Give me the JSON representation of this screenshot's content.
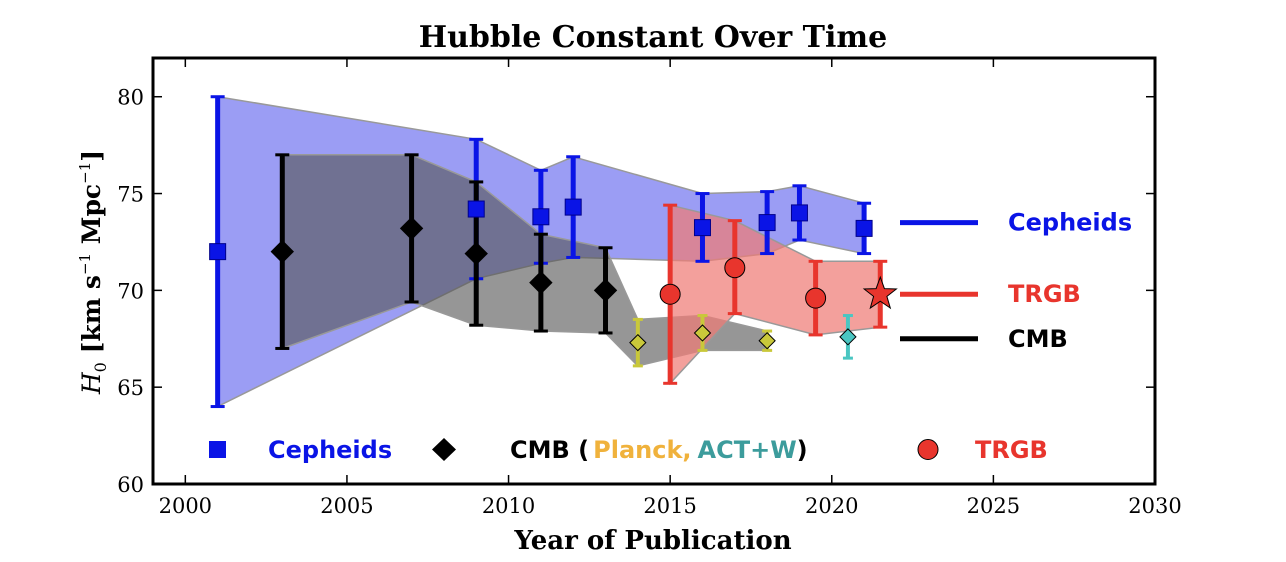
{
  "chart_data": {
    "type": "scatter",
    "title": "Hubble Constant Over Time",
    "xlabel": "Year of Publication",
    "ylabel_parts": {
      "h": "H",
      "sub": "0",
      "unit_a": " [km s",
      "exp_a": "−1",
      "unit_b": " Mpc",
      "exp_b": "−1",
      "unit_c": "]"
    },
    "xlim": [
      1999,
      2030
    ],
    "ylim": [
      60,
      82
    ],
    "xticks": [
      2000,
      2005,
      2010,
      2015,
      2020,
      2025,
      2030
    ],
    "yticks": [
      60,
      65,
      70,
      75,
      80
    ],
    "grid": false,
    "colors": {
      "cepheids": "#0a14e6",
      "cepheids_band": "#7a7cf0",
      "cmb": "#000000",
      "cmb_band": "#555555",
      "trgb": "#e8352d",
      "trgb_band": "#ee7b76",
      "planck": "#f0b23c",
      "actw": "#3c9c9c",
      "planck_err": "#c9c83a",
      "actw_err": "#4ac6c2",
      "band_edge": "#999999"
    },
    "series": [
      {
        "name": "Cepheids",
        "marker": "square",
        "points": [
          {
            "x": 2001,
            "y": 72.0,
            "lo": 64.0,
            "hi": 80.0
          },
          {
            "x": 2009,
            "y": 74.2,
            "lo": 70.6,
            "hi": 77.8
          },
          {
            "x": 2011,
            "y": 73.8,
            "lo": 71.4,
            "hi": 76.2
          },
          {
            "x": 2012,
            "y": 74.3,
            "lo": 71.7,
            "hi": 76.9
          },
          {
            "x": 2016,
            "y": 73.24,
            "lo": 71.5,
            "hi": 75.0
          },
          {
            "x": 2018,
            "y": 73.5,
            "lo": 71.9,
            "hi": 75.1
          },
          {
            "x": 2019,
            "y": 74.0,
            "lo": 72.6,
            "hi": 75.4
          },
          {
            "x": 2021,
            "y": 73.2,
            "lo": 71.9,
            "hi": 74.5
          }
        ]
      },
      {
        "name": "CMB",
        "marker": "diamond",
        "points": [
          {
            "x": 2003,
            "y": 72.0,
            "lo": 67.0,
            "hi": 77.0
          },
          {
            "x": 2007,
            "y": 73.2,
            "lo": 69.4,
            "hi": 77.0
          },
          {
            "x": 2009,
            "y": 71.9,
            "lo": 68.2,
            "hi": 75.6
          },
          {
            "x": 2011,
            "y": 70.4,
            "lo": 67.9,
            "hi": 72.9
          },
          {
            "x": 2013,
            "y": 70.0,
            "lo": 67.8,
            "hi": 72.2
          }
        ]
      },
      {
        "name": "Planck",
        "marker": "diamond",
        "points": [
          {
            "x": 2014,
            "y": 67.3,
            "lo": 66.1,
            "hi": 68.5
          },
          {
            "x": 2016,
            "y": 67.8,
            "lo": 66.9,
            "hi": 68.7
          },
          {
            "x": 2018,
            "y": 67.4,
            "lo": 66.9,
            "hi": 67.9
          }
        ]
      },
      {
        "name": "ACT+W",
        "marker": "diamond",
        "points": [
          {
            "x": 2020.5,
            "y": 67.6,
            "lo": 66.5,
            "hi": 68.7
          }
        ]
      },
      {
        "name": "TRGB",
        "marker": "circle",
        "points": [
          {
            "x": 2015,
            "y": 69.8,
            "lo": 65.2,
            "hi": 74.4
          },
          {
            "x": 2017,
            "y": 71.17,
            "lo": 68.8,
            "hi": 73.6
          },
          {
            "x": 2019.5,
            "y": 69.6,
            "lo": 67.7,
            "hi": 71.5
          },
          {
            "x": 2021.5,
            "y": 69.8,
            "lo": 68.1,
            "hi": 71.5,
            "marker": "star"
          }
        ]
      }
    ],
    "bands": [
      {
        "name": "Cepheids",
        "upper": [
          [
            2001,
            80.0
          ],
          [
            2009,
            77.8
          ],
          [
            2011,
            76.2
          ],
          [
            2012,
            76.9
          ],
          [
            2016,
            75.0
          ],
          [
            2018,
            75.1
          ],
          [
            2019,
            75.4
          ],
          [
            2021,
            74.5
          ]
        ],
        "lower": [
          [
            2001,
            64.0
          ],
          [
            2009,
            70.6
          ],
          [
            2011,
            71.4
          ],
          [
            2012,
            71.7
          ],
          [
            2016,
            71.5
          ],
          [
            2018,
            71.9
          ],
          [
            2019,
            72.6
          ],
          [
            2021,
            71.9
          ]
        ]
      },
      {
        "name": "CMB",
        "upper": [
          [
            2003,
            77.0
          ],
          [
            2007,
            77.0
          ],
          [
            2009,
            75.6
          ],
          [
            2011,
            72.9
          ],
          [
            2013,
            72.2
          ],
          [
            2014,
            68.5
          ],
          [
            2016,
            68.7
          ],
          [
            2018,
            67.9
          ]
        ],
        "lower": [
          [
            2003,
            67.0
          ],
          [
            2007,
            69.4
          ],
          [
            2009,
            68.2
          ],
          [
            2011,
            67.9
          ],
          [
            2013,
            67.8
          ],
          [
            2014,
            66.1
          ],
          [
            2016,
            66.9
          ],
          [
            2018,
            66.9
          ]
        ]
      },
      {
        "name": "TRGB",
        "upper": [
          [
            2015,
            74.4
          ],
          [
            2017,
            73.6
          ],
          [
            2019.5,
            71.5
          ],
          [
            2021.5,
            71.5
          ]
        ],
        "lower": [
          [
            2015,
            65.2
          ],
          [
            2017,
            68.8
          ],
          [
            2019.5,
            67.7
          ],
          [
            2021.5,
            68.1
          ]
        ]
      }
    ],
    "side_legend": {
      "placement": "right",
      "items": [
        {
          "label": "Cepheids",
          "y": 73.5,
          "color": "#0a14e6"
        },
        {
          "label": "TRGB",
          "y": 69.8,
          "color": "#e8352d"
        },
        {
          "label": "CMB",
          "y": 67.5,
          "color": "#000000"
        }
      ]
    },
    "bottom_legend": {
      "placement": "bottom",
      "cepheids": "Cepheids",
      "cmb": "CMB",
      "open": " (",
      "planck": "Planck,",
      "actw": "ACT+W",
      "close": ")",
      "trgb": "TRGB"
    }
  }
}
